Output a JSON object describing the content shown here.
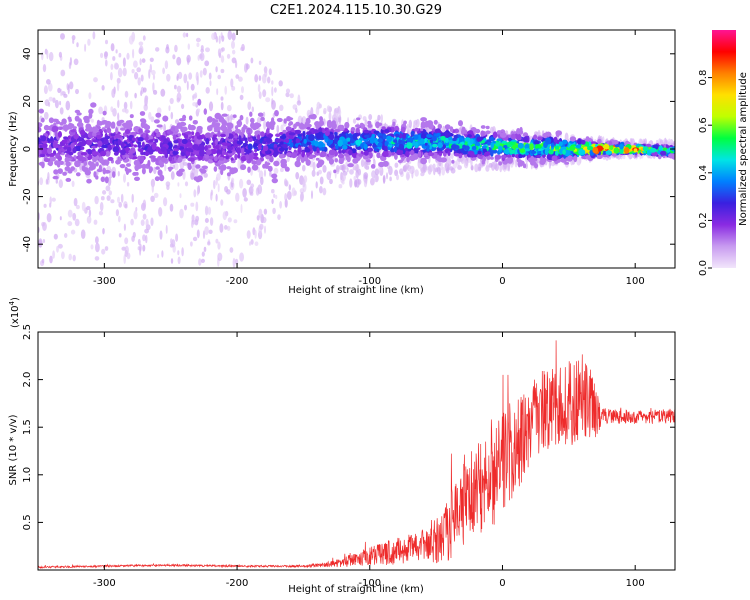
{
  "title": "C2E1.2024.115.10.30.G29",
  "chart_data": [
    {
      "type": "heatmap",
      "xlabel": "Height of straight line (km)",
      "ylabel": "Frequency (Hz)",
      "xlim": [
        -350,
        130
      ],
      "ylim": [
        -50,
        50
      ],
      "x_ticks": [
        -300,
        -200,
        -100,
        0,
        100
      ],
      "y_ticks": [
        -40,
        -20,
        0,
        20,
        40
      ],
      "colorbar": {
        "label": "Normalized spectral amplitude",
        "range": [
          0.0,
          1.0
        ],
        "ticks": [
          "0.0",
          "0.2",
          "0.4",
          "0.6",
          "0.8"
        ],
        "colormap": [
          "#f2e6fb",
          "#c89bf0",
          "#8a2be2",
          "#3a20e0",
          "#0080ff",
          "#00e5e5",
          "#00ff40",
          "#c0ff00",
          "#ffe000",
          "#ff8000",
          "#ff0000",
          "#ff1493"
        ]
      },
      "ridge": {
        "x": [
          -350,
          -300,
          -250,
          -200,
          -150,
          -100,
          -50,
          0,
          50,
          70,
          100,
          130
        ],
        "center_hz": [
          2,
          2,
          1,
          1,
          3,
          3,
          3,
          1,
          0,
          0,
          0,
          -1
        ],
        "half_width_hz": [
          12,
          12,
          12,
          12,
          9,
          8,
          7,
          6,
          5,
          3,
          2,
          2
        ],
        "peak_amplitude": [
          0.25,
          0.25,
          0.25,
          0.25,
          0.35,
          0.45,
          0.5,
          0.55,
          0.65,
          0.9,
          0.85,
          0.6
        ],
        "noise_extent_hz": [
          48,
          48,
          48,
          48,
          20,
          14,
          10,
          8,
          6,
          4,
          3,
          3
        ]
      }
    },
    {
      "type": "line",
      "xlabel": "Height of straight line (km)",
      "ylabel": "SNR (10 * v/v)",
      "y_scale_label": "(x10",
      "y_scale_exp": "4",
      "xlim": [
        -350,
        130
      ],
      "ylim": [
        0,
        2.5
      ],
      "x_ticks": [
        -300,
        -200,
        -100,
        0,
        100
      ],
      "y_ticks": [
        "0.5",
        "1.0",
        "1.5",
        "2.0",
        "2.5"
      ],
      "color": "#ee2b2b",
      "series": [
        {
          "x": [
            -350,
            -300,
            -250,
            -200,
            -150,
            -130,
            -120,
            -100,
            -80,
            -60,
            -50,
            -40,
            -30,
            -20,
            -10,
            0,
            10,
            20,
            30,
            40,
            50,
            60,
            70,
            75,
            80,
            100,
            130
          ],
          "mean": [
            0.03,
            0.04,
            0.05,
            0.04,
            0.04,
            0.06,
            0.08,
            0.15,
            0.2,
            0.25,
            0.3,
            0.45,
            0.7,
            0.85,
            1.0,
            1.15,
            1.3,
            1.5,
            1.65,
            1.7,
            1.75,
            1.8,
            1.7,
            1.62,
            1.62,
            1.6,
            1.62
          ],
          "spread": [
            0.01,
            0.01,
            0.01,
            0.01,
            0.01,
            0.03,
            0.05,
            0.1,
            0.15,
            0.15,
            0.25,
            0.35,
            0.45,
            0.5,
            0.6,
            0.55,
            0.5,
            0.45,
            0.45,
            0.4,
            0.45,
            0.45,
            0.35,
            0.08,
            0.08,
            0.07,
            0.08
          ],
          "peak_max": 2.5
        }
      ]
    }
  ]
}
